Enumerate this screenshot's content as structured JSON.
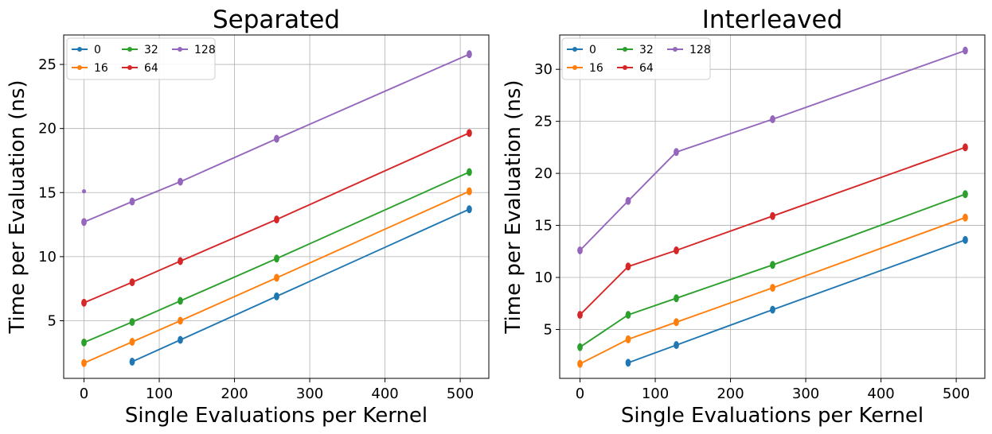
{
  "figure": {
    "background": "#ffffff"
  },
  "chart_data": [
    {
      "type": "line",
      "title": "Separated",
      "xlabel": "Single Evaluations per Kernel",
      "ylabel": "Time per Evaluation (ns)",
      "xlim": [
        -27,
        538
      ],
      "ylim": [
        0.5,
        27.3
      ],
      "xticks": [
        0,
        100,
        200,
        300,
        400,
        500
      ],
      "yticks": [
        5,
        10,
        15,
        20,
        25
      ],
      "grid": true,
      "legend": {
        "position": "top-left",
        "columns": 3
      },
      "series": [
        {
          "name": "0",
          "color": "#1f77b4",
          "x": [
            64,
            128,
            256,
            512
          ],
          "y": [
            1.8,
            3.5,
            6.9,
            13.7
          ]
        },
        {
          "name": "16",
          "color": "#ff7f0e",
          "x": [
            0,
            64,
            128,
            256,
            512
          ],
          "y": [
            1.7,
            3.35,
            5.0,
            8.35,
            15.1
          ]
        },
        {
          "name": "32",
          "color": "#2ca02c",
          "x": [
            0,
            64,
            128,
            256,
            512
          ],
          "y": [
            3.3,
            4.9,
            6.55,
            9.85,
            16.6
          ]
        },
        {
          "name": "64",
          "color": "#d62728",
          "x": [
            0,
            64,
            128,
            256,
            512
          ],
          "y": [
            6.4,
            8.0,
            9.65,
            12.9,
            19.65
          ]
        },
        {
          "name": "128",
          "color": "#9467bd",
          "x": [
            0,
            64,
            128,
            256,
            512
          ],
          "y": [
            12.7,
            14.3,
            15.85,
            19.2,
            25.8
          ]
        }
      ],
      "outliers": [
        {
          "series": "128",
          "x": 0,
          "y": 15.1
        }
      ]
    },
    {
      "type": "line",
      "title": "Interleaved",
      "xlabel": "Single Evaluations per Kernel",
      "ylabel": "Time per Evaluation (ns)",
      "xlim": [
        -27,
        538
      ],
      "ylim": [
        0.3,
        33.3
      ],
      "xticks": [
        0,
        100,
        200,
        300,
        400,
        500
      ],
      "yticks": [
        5,
        10,
        15,
        20,
        25,
        30
      ],
      "grid": true,
      "legend": {
        "position": "top-left",
        "columns": 3
      },
      "series": [
        {
          "name": "0",
          "color": "#1f77b4",
          "x": [
            64,
            128,
            256,
            512
          ],
          "y": [
            1.8,
            3.5,
            6.9,
            13.6
          ]
        },
        {
          "name": "16",
          "color": "#ff7f0e",
          "x": [
            0,
            64,
            128,
            256,
            512
          ],
          "y": [
            1.7,
            4.05,
            5.7,
            9.0,
            15.75
          ]
        },
        {
          "name": "32",
          "color": "#2ca02c",
          "x": [
            0,
            64,
            128,
            256,
            512
          ],
          "y": [
            3.3,
            6.4,
            8.0,
            11.2,
            18.0
          ]
        },
        {
          "name": "64",
          "color": "#d62728",
          "x": [
            0,
            64,
            128,
            256,
            512
          ],
          "y": [
            6.4,
            11.05,
            12.6,
            15.9,
            22.5
          ]
        },
        {
          "name": "128",
          "color": "#9467bd",
          "x": [
            0,
            64,
            128,
            256,
            512
          ],
          "y": [
            12.6,
            17.35,
            22.05,
            25.2,
            31.8
          ]
        }
      ],
      "outliers": []
    }
  ]
}
